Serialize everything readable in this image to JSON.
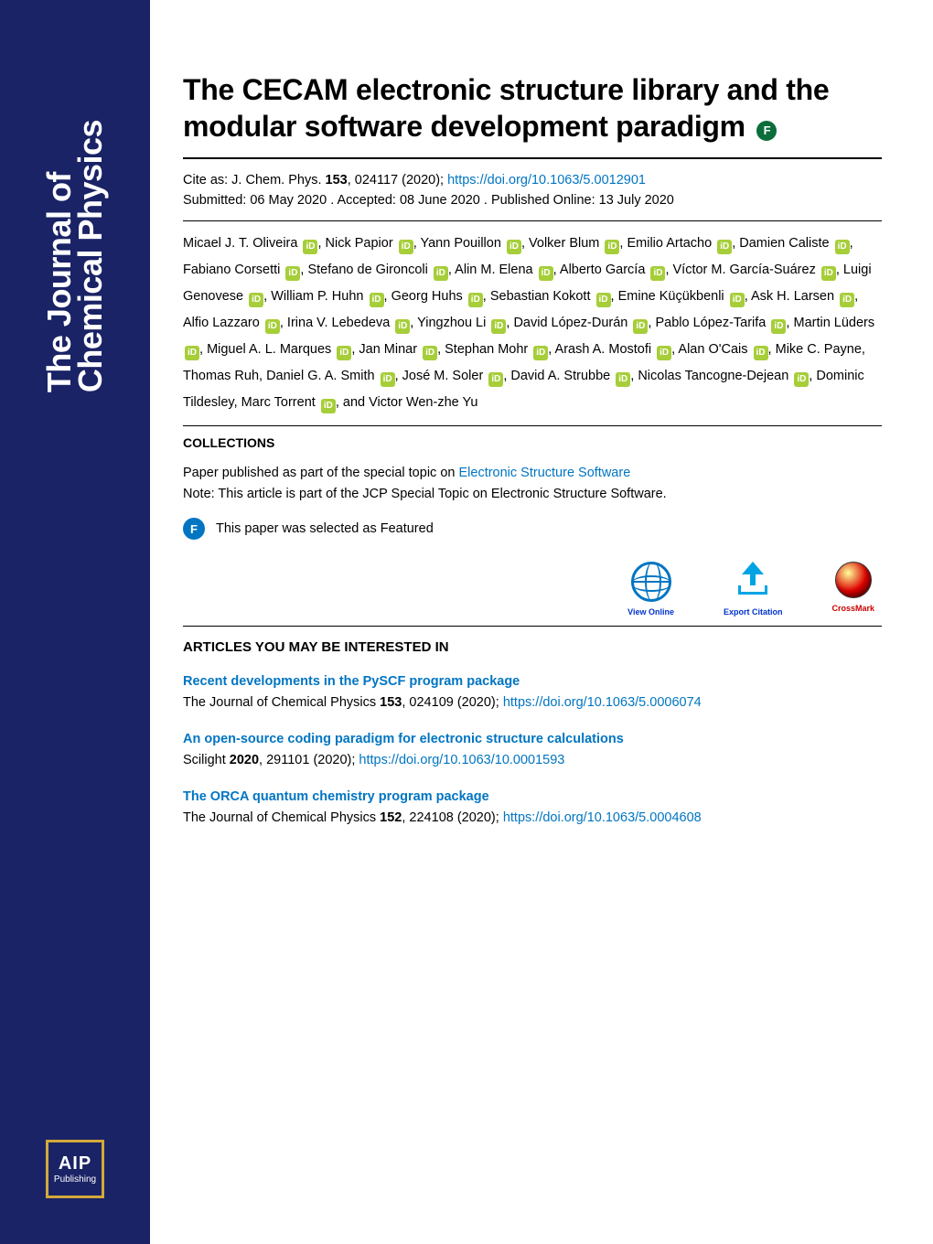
{
  "journal": {
    "line1": "The Journal of",
    "line2": "Chemical Physics"
  },
  "publisher": {
    "top": "AIP",
    "bottom": "Publishing"
  },
  "article": {
    "title": "The CECAM electronic structure library and the modular software development paradigm",
    "featured_badge": "F"
  },
  "citation": {
    "prefix": "Cite as: J. Chem. Phys. ",
    "volume": "153",
    "pages_year": ", 024117 (2020); ",
    "doi_url": "https://doi.org/10.1063/5.0012901",
    "submitted": "Submitted: 06 May 2020 . Accepted: 08 June 2020 . Published Online: 13 July 2020"
  },
  "authors": [
    {
      "n": "Micael J. T. Oliveira",
      "o": true
    },
    {
      "n": "Nick Papior",
      "o": true
    },
    {
      "n": "Yann Pouillon",
      "o": true
    },
    {
      "n": "Volker Blum",
      "o": true
    },
    {
      "n": "Emilio Artacho",
      "o": true
    },
    {
      "n": "Damien Caliste",
      "o": true
    },
    {
      "n": "Fabiano Corsetti",
      "o": true
    },
    {
      "n": "Stefano de Gironcoli",
      "o": true
    },
    {
      "n": "Alin M. Elena",
      "o": true
    },
    {
      "n": "Alberto García",
      "o": true
    },
    {
      "n": "Víctor M. García-Suárez",
      "o": true
    },
    {
      "n": "Luigi Genovese",
      "o": true
    },
    {
      "n": "William P. Huhn",
      "o": true
    },
    {
      "n": "Georg Huhs",
      "o": true
    },
    {
      "n": "Sebastian Kokott",
      "o": true
    },
    {
      "n": "Emine Küçükbenli",
      "o": true
    },
    {
      "n": "Ask H. Larsen",
      "o": true
    },
    {
      "n": "Alfio Lazzaro",
      "o": true
    },
    {
      "n": "Irina V. Lebedeva",
      "o": true
    },
    {
      "n": "Yingzhou Li",
      "o": true
    },
    {
      "n": "David López-Durán",
      "o": true
    },
    {
      "n": "Pablo López-Tarifa",
      "o": true
    },
    {
      "n": "Martin Lüders",
      "o": true
    },
    {
      "n": "Miguel A. L. Marques",
      "o": true
    },
    {
      "n": "Jan Minar",
      "o": true
    },
    {
      "n": "Stephan Mohr",
      "o": true
    },
    {
      "n": "Arash A. Mostofi",
      "o": true
    },
    {
      "n": "Alan O'Cais",
      "o": true
    },
    {
      "n": "Mike C. Payne",
      "o": false
    },
    {
      "n": "Thomas Ruh",
      "o": false
    },
    {
      "n": "Daniel G. A. Smith",
      "o": true
    },
    {
      "n": "José M. Soler",
      "o": true
    },
    {
      "n": "David A. Strubbe",
      "o": true
    },
    {
      "n": "Nicolas Tancogne-Dejean",
      "o": true
    },
    {
      "n": "Dominic Tildesley",
      "o": false
    },
    {
      "n": "Marc Torrent",
      "o": true
    },
    {
      "n": "Victor Wen-zhe Yu",
      "o": false,
      "last": true
    }
  ],
  "collections": {
    "heading": "COLLECTIONS",
    "line1_pre": "Paper published as part of the special topic on ",
    "line1_link": "Electronic Structure Software",
    "line2": "Note: This article is part of the JCP Special Topic on Electronic Structure Software.",
    "featured_text": "This paper was selected as Featured",
    "featured_circle": "F"
  },
  "actions": {
    "view": "View Online",
    "export": "Export Citation",
    "crossmark": "CrossMark"
  },
  "interested": {
    "heading": "ARTICLES YOU MAY BE INTERESTED IN",
    "items": [
      {
        "title": "Recent developments in the PySCF program package",
        "meta_pre": "The Journal of Chemical Physics ",
        "vol": "153",
        "meta_post": ", 024109 (2020); ",
        "doi": "https://doi.org/10.1063/5.0006074"
      },
      {
        "title": "An open-source coding paradigm for electronic structure calculations",
        "meta_pre": "Scilight ",
        "vol": "2020",
        "meta_post": ", 291101 (2020); ",
        "doi": "https://doi.org/10.1063/10.0001593"
      },
      {
        "title": "The ORCA quantum chemistry program package",
        "meta_pre": "The Journal of Chemical Physics ",
        "vol": "152",
        "meta_post": ", 224108 (2020); ",
        "doi": "https://doi.org/10.1063/5.0004608"
      }
    ]
  },
  "colors": {
    "sidebar": "#1a2366",
    "link": "#0075c2",
    "orcid": "#a6ce39",
    "featured_green": "#0b6e3a",
    "aip_border": "#d4a83a",
    "cyan": "#00a4e4"
  }
}
